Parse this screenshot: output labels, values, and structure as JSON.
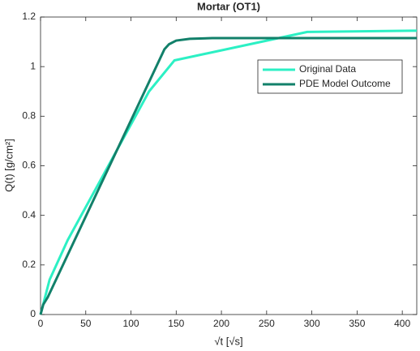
{
  "chart_data": {
    "type": "line",
    "title": "Mortar (OT1)",
    "xlabel": "√t [√s]",
    "ylabel": "Q(t) [g/cm²]",
    "series": [
      {
        "name": "Original Data",
        "color": "#2cf0c4",
        "x": [
          0,
          10,
          30,
          120,
          148,
          295,
          416
        ],
        "values": [
          0,
          0.14,
          0.3,
          0.9,
          1.025,
          1.14,
          1.145
        ]
      },
      {
        "name": "PDE Model Outcome",
        "color": "#12806a",
        "x": [
          0,
          3,
          8,
          137,
          142,
          150,
          165,
          190,
          416
        ],
        "values": [
          0,
          0.04,
          0.07,
          1.07,
          1.09,
          1.105,
          1.112,
          1.115,
          1.115
        ]
      }
    ],
    "xlim": [
      0,
      416
    ],
    "xticks": [
      0,
      50,
      100,
      150,
      200,
      250,
      300,
      350,
      400
    ],
    "ylim": [
      0,
      1.2
    ],
    "yticks": [
      0,
      0.2,
      0.4,
      0.6,
      0.8,
      1,
      1.2
    ],
    "legend": "northeast"
  }
}
